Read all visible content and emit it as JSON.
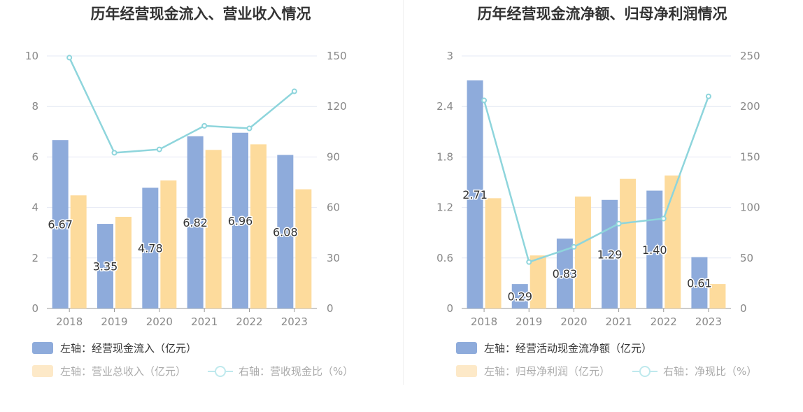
{
  "colors": {
    "bar1": "#8eabdb",
    "bar2": "#fddb9c",
    "line": "#8ed5dc",
    "grid": "#e4e8f4",
    "axis_text": "#888888",
    "label_text": "#333333",
    "legend_active": "#333333",
    "legend_faded": "#aaaaaa",
    "swatch2_faded": "#fde9c8",
    "line_faded": "#bfe9ed"
  },
  "chart_data": [
    {
      "type": "bar+line",
      "title": "历年经营现金流入、营业收入情况",
      "categories": [
        "2018",
        "2019",
        "2020",
        "2021",
        "2022",
        "2023"
      ],
      "left_axis": {
        "ticks": [
          "0",
          "2",
          "4",
          "6",
          "8",
          "10"
        ],
        "ylim": [
          0,
          10
        ]
      },
      "right_axis": {
        "ticks": [
          "0",
          "30",
          "60",
          "90",
          "120",
          "150"
        ],
        "ylim": [
          0,
          150
        ]
      },
      "series": [
        {
          "name": "左轴：经营现金流入（亿元）",
          "type": "bar",
          "axis": "left",
          "values": [
            6.67,
            3.35,
            4.78,
            6.82,
            6.96,
            6.08
          ],
          "labels": [
            "6.67",
            "3.35",
            "4.78",
            "6.82",
            "6.96",
            "6.08"
          ]
        },
        {
          "name": "左轴：营业总收入（亿元）",
          "type": "bar",
          "axis": "left",
          "values": [
            4.48,
            3.63,
            5.07,
            6.28,
            6.5,
            4.72
          ]
        },
        {
          "name": "右轴：营收现金比（%）",
          "type": "line",
          "axis": "right",
          "values": [
            149,
            92.5,
            94.5,
            108.5,
            107,
            129
          ]
        }
      ]
    },
    {
      "type": "bar+line",
      "title": "历年经营现金流净额、归母净利润情况",
      "categories": [
        "2018",
        "2019",
        "2020",
        "2021",
        "2022",
        "2023"
      ],
      "left_axis": {
        "ticks": [
          "0",
          "0.6",
          "1.2",
          "1.8",
          "2.4",
          "3"
        ],
        "ylim": [
          0,
          3
        ]
      },
      "right_axis": {
        "ticks": [
          "0",
          "50",
          "100",
          "150",
          "200",
          "250"
        ],
        "ylim": [
          0,
          250
        ]
      },
      "series": [
        {
          "name": "左轴：经营活动现金流净额（亿元）",
          "type": "bar",
          "axis": "left",
          "values": [
            2.71,
            0.29,
            0.83,
            1.29,
            1.4,
            0.61
          ],
          "labels": [
            "2.71",
            "0.29",
            "0.83",
            "1.29",
            "1.40",
            "0.61"
          ]
        },
        {
          "name": "左轴：归母净利润（亿元）",
          "type": "bar",
          "axis": "left",
          "values": [
            1.31,
            0.63,
            1.33,
            1.54,
            1.58,
            0.29
          ]
        },
        {
          "name": "右轴：净现比（%）",
          "type": "line",
          "axis": "right",
          "values": [
            206,
            46,
            61,
            84,
            89,
            210
          ]
        }
      ]
    }
  ]
}
